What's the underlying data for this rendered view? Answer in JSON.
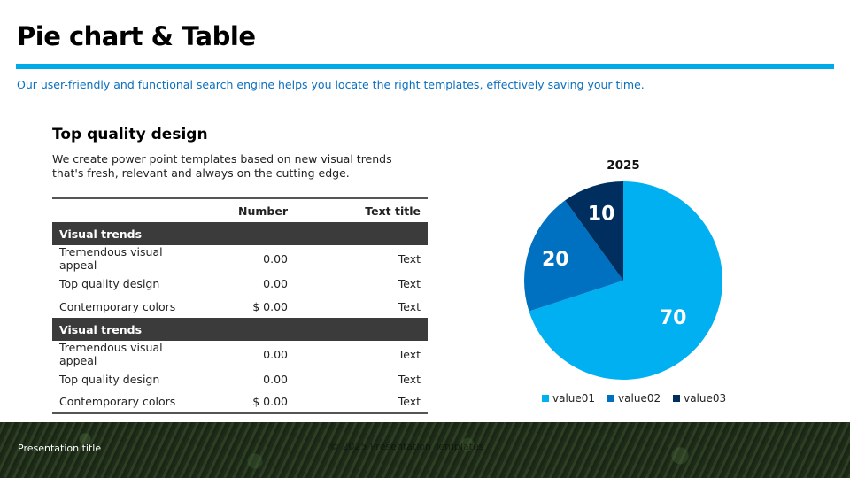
{
  "slide": {
    "title": "Pie chart & Table",
    "subtitle": "Our user-friendly and functional search engine helps you locate the right templates, effectively saving your time.",
    "section_heading": "Top quality design",
    "section_text": "We create power point templates based on new visual trends that's fresh, relevant and always on the cutting edge."
  },
  "table": {
    "headers": [
      "",
      "Number",
      "Text title"
    ],
    "groups": [
      {
        "label": "Visual trends",
        "rows": [
          [
            "Tremendous visual appeal",
            "0.00",
            "Text"
          ],
          [
            "Top quality design",
            "0.00",
            "Text"
          ],
          [
            "Contemporary colors",
            "$ 0.00",
            "Text"
          ]
        ]
      },
      {
        "label": "Visual trends",
        "rows": [
          [
            "Tremendous visual appeal",
            "0.00",
            "Text"
          ],
          [
            "Top quality design",
            "0.00",
            "Text"
          ],
          [
            "Contemporary colors",
            "$ 0.00",
            "Text"
          ]
        ]
      }
    ]
  },
  "chart_data": {
    "type": "pie",
    "title": "2025",
    "categories": [
      "value01",
      "value02",
      "value03"
    ],
    "values": [
      70,
      20,
      10
    ],
    "colors": [
      "#00b0f0",
      "#0070c0",
      "#002f5f"
    ],
    "legend": "bottom"
  },
  "footer": {
    "title": "Presentation title",
    "copyright": "© 2025 Presentation Templates"
  }
}
